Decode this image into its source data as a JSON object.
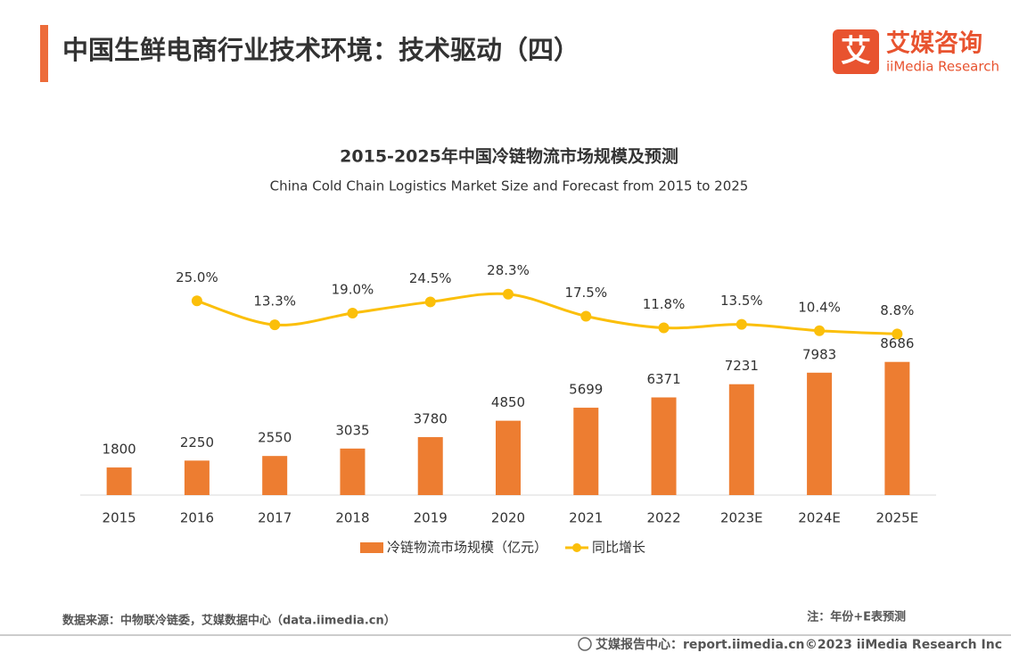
{
  "header": {
    "title": "中国生鲜电商行业技术环境：技术驱动（四）",
    "logo_mark": "艾",
    "logo_name": "艾媒咨询",
    "logo_sub": "iiMedia Research"
  },
  "chart_data": {
    "type": "bar_line",
    "title": "2015-2025年中国冷链物流市场规模及预测",
    "subtitle": "China Cold Chain Logistics Market Size and Forecast from 2015 to 2025",
    "categories": [
      "2015",
      "2016",
      "2017",
      "2018",
      "2019",
      "2020",
      "2021",
      "2022",
      "2023E",
      "2024E",
      "2025E"
    ],
    "series": [
      {
        "name": "冷链物流市场规模（亿元）",
        "type": "bar",
        "color": "#ed7d31",
        "values": [
          1800,
          2250,
          2550,
          3035,
          3780,
          4850,
          5699,
          6371,
          7231,
          7983,
          8686
        ]
      },
      {
        "name": "同比增长",
        "type": "line",
        "axis": "y2",
        "color": "#fbbf0a",
        "values": [
          null,
          25.0,
          13.3,
          19.0,
          24.5,
          28.3,
          17.5,
          11.8,
          13.5,
          10.4,
          8.8
        ],
        "value_labels": [
          null,
          "25.0%",
          "13.3%",
          "19.0%",
          "24.5%",
          "28.3%",
          "17.5%",
          "11.8%",
          "13.5%",
          "10.4%",
          "8.8%"
        ]
      }
    ],
    "ylim": [
      0,
      16000
    ],
    "y2lim": [
      -70,
      50
    ],
    "legend": "bottom"
  },
  "footer": {
    "source": "数据来源：中物联冷链委，艾媒数据中心（data.iimedia.cn）",
    "note": "注：年份+E表预测",
    "center": "艾媒报告中心：report.iimedia.cn",
    "copyright": "©2023  iiMedia Research  Inc"
  }
}
